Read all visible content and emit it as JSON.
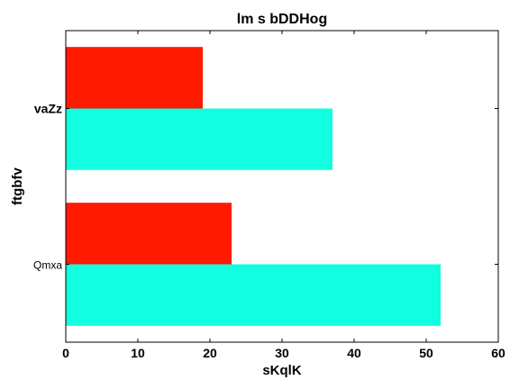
{
  "chart_data": {
    "type": "bar",
    "orientation": "horizontal",
    "title": "lm s  bDDHog",
    "xlabel": "sKqlK",
    "ylabel": "ftgbfv",
    "categories": [
      "Qmxa",
      "vaZz"
    ],
    "series": [
      {
        "values": [
          52,
          37
        ],
        "color": "#11ffe0"
      },
      {
        "values": [
          23,
          19
        ],
        "color": "#ff1a00"
      }
    ],
    "xlim": [
      0,
      60
    ],
    "xticks": [
      0,
      10,
      20,
      30,
      40,
      50,
      60
    ],
    "grid": false,
    "legend": "none"
  }
}
